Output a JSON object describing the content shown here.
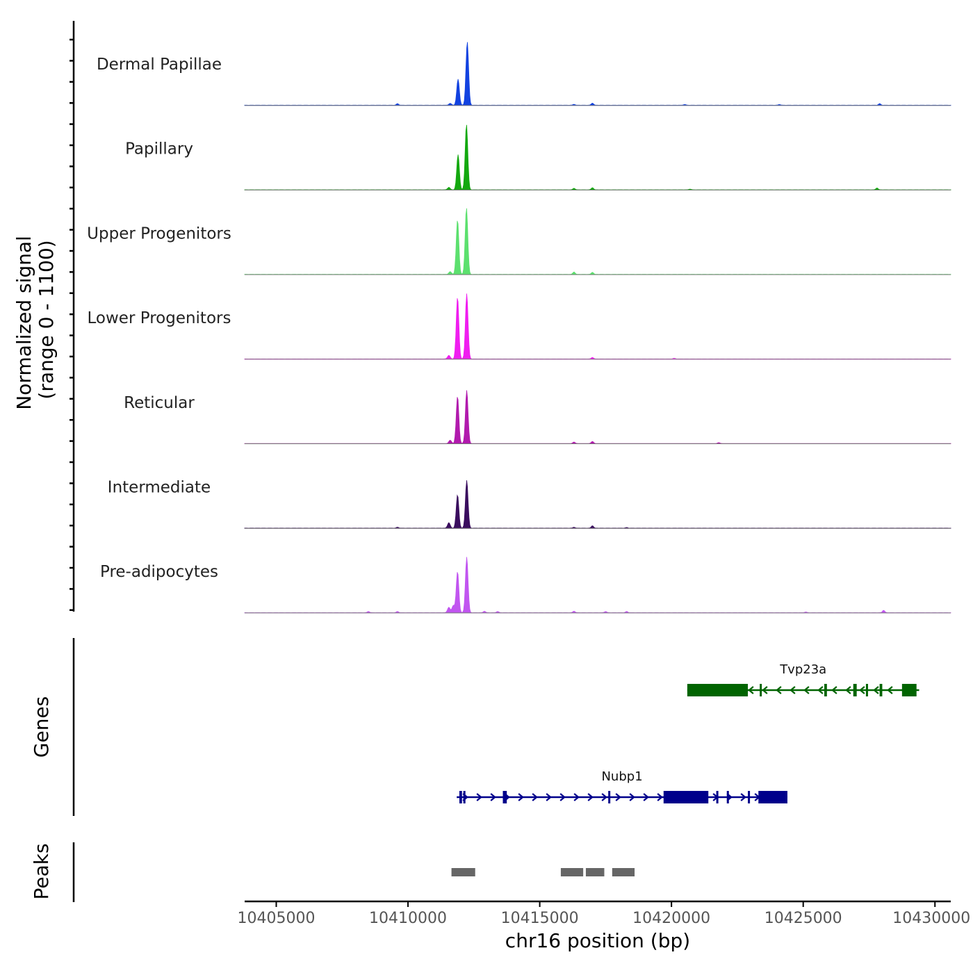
{
  "chart_data": {
    "type": "area",
    "title": "",
    "ylabel_line1": "Normalized signal",
    "ylabel_line2": "(range 0 - 1100)",
    "y_range": [
      0,
      1100
    ],
    "xlabel": "chr16 position (bp)",
    "x_range": [
      10403800,
      10430600
    ],
    "x_ticks": [
      10405000,
      10410000,
      10415000,
      10420000,
      10425000,
      10430000
    ],
    "x_tick_labels": [
      "10405000",
      "10410000",
      "10415000",
      "10420000",
      "10425000",
      "10430000"
    ],
    "tracks": [
      {
        "name": "Dermal Papillae",
        "color": "#1242e0",
        "peaks": [
          [
            10411600,
            30
          ],
          [
            10411900,
            430
          ],
          [
            10412250,
            1050
          ]
        ],
        "bumps": [
          [
            10409600,
            25
          ],
          [
            10416300,
            15
          ],
          [
            10417000,
            35
          ],
          [
            10420500,
            12
          ],
          [
            10424100,
            12
          ],
          [
            10427900,
            25
          ]
        ]
      },
      {
        "name": "Papillary",
        "color": "#13a80f",
        "peaks": [
          [
            10411550,
            40
          ],
          [
            10411900,
            580
          ],
          [
            10412220,
            1080
          ]
        ],
        "bumps": [
          [
            10416300,
            25
          ],
          [
            10417000,
            35
          ],
          [
            10420700,
            12
          ],
          [
            10427800,
            30
          ]
        ]
      },
      {
        "name": "Upper Progenitors",
        "color": "#5ce06e",
        "peaks": [
          [
            10411600,
            45
          ],
          [
            10411880,
            900
          ],
          [
            10412220,
            1100
          ]
        ],
        "bumps": [
          [
            10416300,
            40
          ],
          [
            10417000,
            35
          ]
        ]
      },
      {
        "name": "Lower Progenitors",
        "color": "#f01df0",
        "peaks": [
          [
            10411550,
            60
          ],
          [
            10411880,
            1020
          ],
          [
            10412230,
            1080
          ]
        ],
        "bumps": [
          [
            10417000,
            25
          ],
          [
            10420100,
            10
          ]
        ]
      },
      {
        "name": "Reticular",
        "color": "#b11aad",
        "peaks": [
          [
            10411600,
            55
          ],
          [
            10411880,
            780
          ],
          [
            10412230,
            880
          ]
        ],
        "bumps": [
          [
            10416300,
            25
          ],
          [
            10417000,
            35
          ],
          [
            10421800,
            15
          ]
        ]
      },
      {
        "name": "Intermediate",
        "color": "#3a0d5e",
        "peaks": [
          [
            10411550,
            90
          ],
          [
            10411880,
            550
          ],
          [
            10412230,
            790
          ]
        ],
        "bumps": [
          [
            10409600,
            15
          ],
          [
            10416300,
            15
          ],
          [
            10417000,
            40
          ],
          [
            10418300,
            10
          ]
        ]
      },
      {
        "name": "Pre-adipocytes",
        "color": "#c155f0",
        "peaks": [
          [
            10411550,
            90
          ],
          [
            10411720,
            120
          ],
          [
            10411880,
            680
          ],
          [
            10412230,
            920
          ]
        ],
        "bumps": [
          [
            10408500,
            20
          ],
          [
            10409600,
            20
          ],
          [
            10412900,
            25
          ],
          [
            10413400,
            20
          ],
          [
            10416300,
            25
          ],
          [
            10417500,
            20
          ],
          [
            10418300,
            20
          ],
          [
            10425100,
            12
          ],
          [
            10428050,
            40
          ]
        ]
      }
    ],
    "genes": [
      {
        "name": "Tvp23a",
        "color": "#006400",
        "strand": "-",
        "start": 10420600,
        "end": 10429400,
        "exons": [
          [
            10420600,
            10422900
          ],
          [
            10423350,
            10423420
          ],
          [
            10425800,
            10425900
          ],
          [
            10426900,
            10427030
          ],
          [
            10427380,
            10427460
          ],
          [
            10427900,
            10428000
          ],
          [
            10428750,
            10429300
          ]
        ]
      },
      {
        "name": "Nubp1",
        "color": "#00008b",
        "strand": "+",
        "start": 10411850,
        "end": 10424400,
        "exons": [
          [
            10411950,
            10412050
          ],
          [
            10412100,
            10412180
          ],
          [
            10413600,
            10413750
          ],
          [
            10417600,
            10417660
          ],
          [
            10419700,
            10421400
          ],
          [
            10421700,
            10421760
          ],
          [
            10422100,
            10422160
          ],
          [
            10422900,
            10422960
          ],
          [
            10423300,
            10424400
          ]
        ]
      }
    ],
    "gene_track_label": "Genes",
    "peaks_track_label": "Peaks",
    "peak_regions": [
      [
        10411650,
        10412550
      ],
      [
        10415800,
        10416650
      ],
      [
        10416750,
        10417450
      ],
      [
        10417750,
        10418600
      ]
    ],
    "peak_color": "#666666"
  }
}
